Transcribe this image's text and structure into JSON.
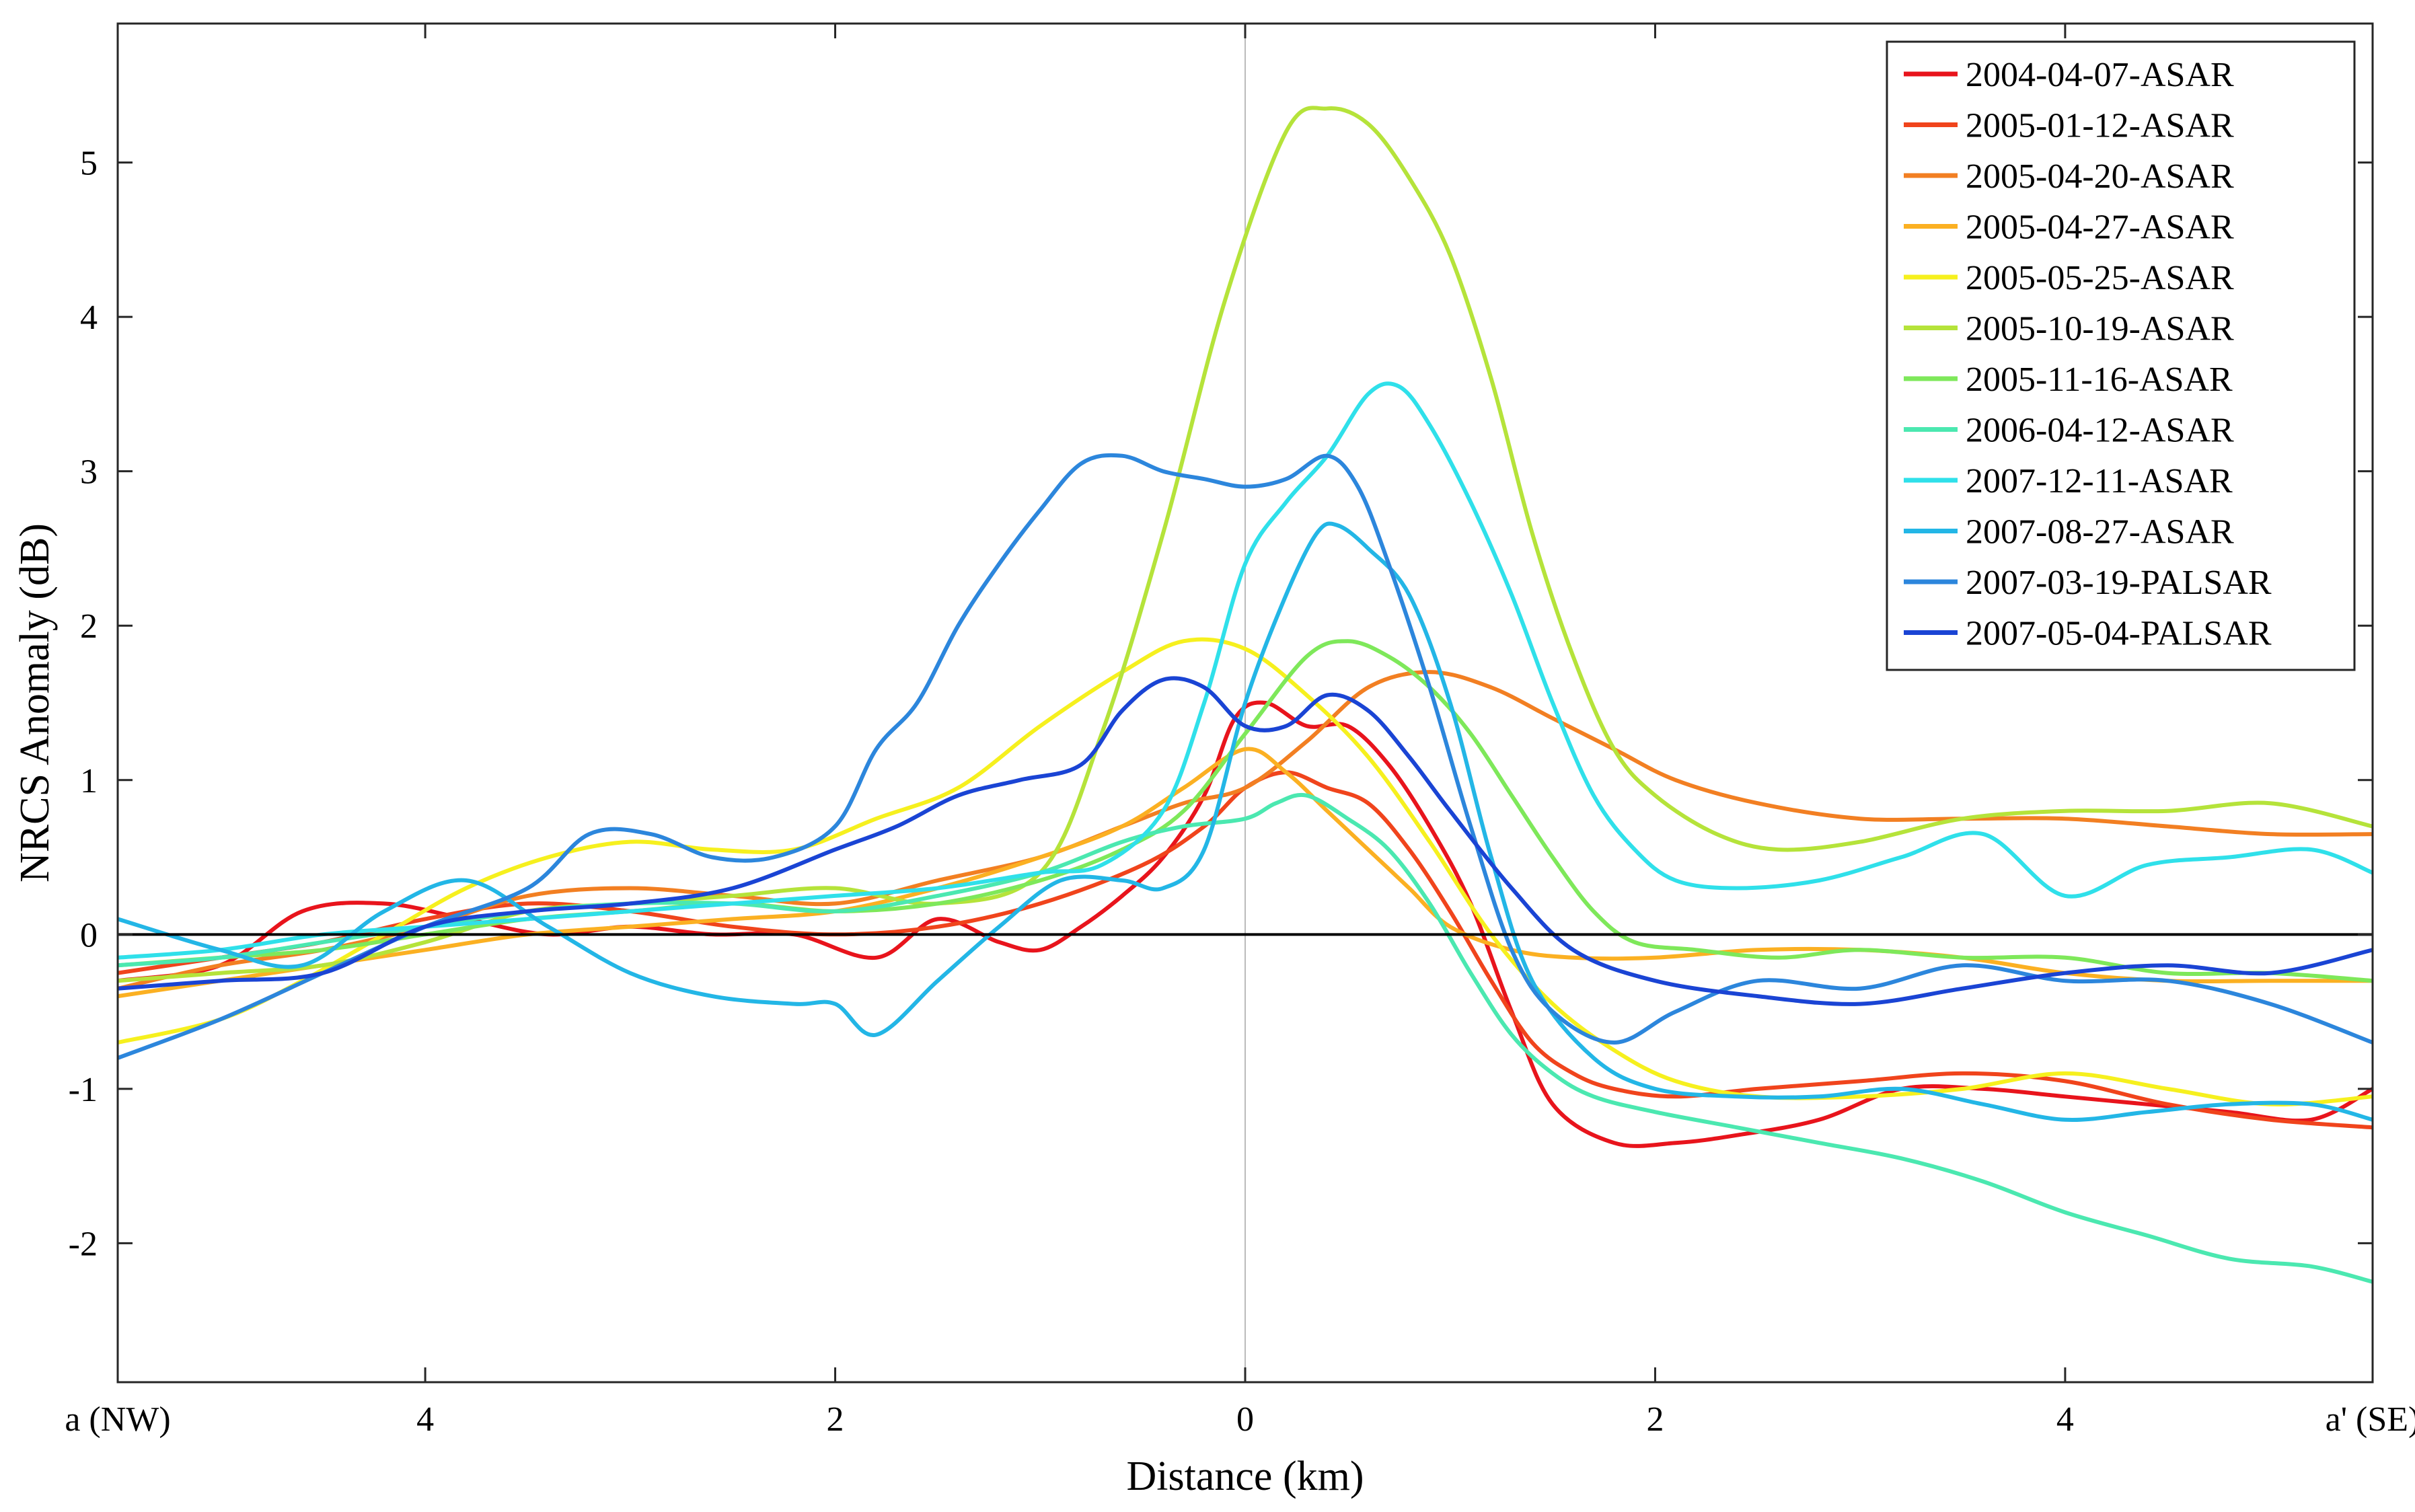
{
  "chart_data": {
    "type": "line",
    "title": "",
    "xlabel": "Distance (km)",
    "ylabel": "NRCS Anomaly (dB)",
    "xlim": [
      -5.5,
      5.5
    ],
    "ylim": [
      -2.9,
      5.9
    ],
    "grid": false,
    "legend_position": "top-right",
    "x_ticks": [
      {
        "value": -5.5,
        "label": "a (NW)"
      },
      {
        "value": -4,
        "label": "4"
      },
      {
        "value": -2,
        "label": "2"
      },
      {
        "value": 0,
        "label": "0"
      },
      {
        "value": 2,
        "label": "2"
      },
      {
        "value": 4,
        "label": "4"
      },
      {
        "value": 5.5,
        "label": "a' (SE)"
      }
    ],
    "y_ticks": [
      {
        "value": 5,
        "label": "5"
      },
      {
        "value": 4,
        "label": "4"
      },
      {
        "value": 3,
        "label": "3"
      },
      {
        "value": 2,
        "label": "2"
      },
      {
        "value": 1,
        "label": "1"
      },
      {
        "value": 0,
        "label": "0"
      },
      {
        "value": -1,
        "label": "-1"
      },
      {
        "value": -2,
        "label": "-2"
      }
    ],
    "reference_lines": [
      {
        "axis": "y",
        "value": 0,
        "color": "#000000"
      },
      {
        "axis": "x",
        "value": 0,
        "color": "#bbbbbb"
      }
    ],
    "series": [
      {
        "name": "2004-04-07-ASAR",
        "color": "#e8141c",
        "x": [
          -5.5,
          -5,
          -4.6,
          -4.2,
          -3.8,
          -3.4,
          -3,
          -2.6,
          -2.2,
          -1.8,
          -1.5,
          -1.2,
          -1,
          -0.8,
          -0.6,
          -0.4,
          -0.2,
          -0.05,
          0.1,
          0.3,
          0.5,
          0.7,
          0.9,
          1.1,
          1.3,
          1.5,
          1.8,
          2.1,
          2.4,
          2.8,
          3.2,
          3.6,
          4,
          4.4,
          4.8,
          5.2,
          5.5
        ],
        "y": [
          -0.3,
          -0.2,
          0.15,
          0.2,
          0.1,
          0,
          0.05,
          0,
          0,
          -0.15,
          0.1,
          -0.05,
          -0.1,
          0.05,
          0.25,
          0.5,
          0.9,
          1.4,
          1.5,
          1.35,
          1.35,
          1.1,
          0.7,
          0.2,
          -0.5,
          -1.1,
          -1.35,
          -1.35,
          -1.3,
          -1.2,
          -1,
          -1,
          -1.05,
          -1.1,
          -1.15,
          -1.2,
          -1
        ]
      },
      {
        "name": "2005-01-12-ASAR",
        "color": "#f0441c",
        "x": [
          -5.5,
          -5,
          -4.5,
          -4,
          -3.5,
          -3,
          -2.5,
          -2,
          -1.5,
          -1,
          -0.5,
          -0.2,
          0,
          0.2,
          0.4,
          0.6,
          0.8,
          1,
          1.2,
          1.4,
          1.6,
          1.8,
          2.1,
          2.5,
          3,
          3.5,
          4,
          4.5,
          5,
          5.5
        ],
        "y": [
          -0.25,
          -0.15,
          -0.05,
          0.1,
          0.2,
          0.15,
          0.05,
          0,
          0.05,
          0.2,
          0.45,
          0.7,
          0.95,
          1.05,
          0.95,
          0.85,
          0.55,
          0.15,
          -0.3,
          -0.7,
          -0.9,
          -1,
          -1.05,
          -1,
          -0.95,
          -0.9,
          -0.95,
          -1.1,
          -1.2,
          -1.25
        ]
      },
      {
        "name": "2005-04-20-ASAR",
        "color": "#f27f22",
        "x": [
          -5.5,
          -5,
          -4.5,
          -4,
          -3.5,
          -3,
          -2.5,
          -2,
          -1.5,
          -1,
          -0.6,
          -0.3,
          0,
          0.3,
          0.6,
          0.9,
          1.2,
          1.5,
          1.8,
          2.1,
          2.5,
          3,
          3.5,
          4,
          4.5,
          5,
          5.5
        ],
        "y": [
          -0.35,
          -0.2,
          -0.1,
          0.05,
          0.25,
          0.3,
          0.25,
          0.2,
          0.35,
          0.5,
          0.7,
          0.85,
          0.95,
          1.25,
          1.6,
          1.7,
          1.6,
          1.4,
          1.2,
          1,
          0.85,
          0.75,
          0.75,
          0.75,
          0.7,
          0.65,
          0.65
        ]
      },
      {
        "name": "2005-04-27-ASAR",
        "color": "#fbb022",
        "x": [
          -5.5,
          -5,
          -4.5,
          -4,
          -3.5,
          -3,
          -2.5,
          -2,
          -1.5,
          -1,
          -0.6,
          -0.3,
          0,
          0.2,
          0.4,
          0.6,
          0.8,
          1,
          1.3,
          1.6,
          2,
          2.5,
          3,
          3.5,
          4,
          4.5,
          5,
          5.5
        ],
        "y": [
          -0.4,
          -0.3,
          -0.2,
          -0.1,
          0,
          0.05,
          0.1,
          0.15,
          0.3,
          0.5,
          0.7,
          0.95,
          1.2,
          1.05,
          0.8,
          0.55,
          0.3,
          0.05,
          -0.1,
          -0.15,
          -0.15,
          -0.1,
          -0.1,
          -0.15,
          -0.25,
          -0.3,
          -0.3,
          -0.3
        ]
      },
      {
        "name": "2005-05-25-ASAR",
        "color": "#f6f01e",
        "x": [
          -5.5,
          -5,
          -4.6,
          -4.2,
          -3.8,
          -3.4,
          -3,
          -2.6,
          -2.2,
          -1.8,
          -1.4,
          -1,
          -0.6,
          -0.3,
          0,
          0.3,
          0.6,
          0.9,
          1.2,
          1.5,
          1.8,
          2.1,
          2.5,
          3,
          3.5,
          4,
          4.5,
          5,
          5.5
        ],
        "y": [
          -0.7,
          -0.55,
          -0.3,
          0,
          0.3,
          0.5,
          0.6,
          0.55,
          0.55,
          0.75,
          0.95,
          1.35,
          1.7,
          1.9,
          1.85,
          1.55,
          1.15,
          0.6,
          0,
          -0.45,
          -0.75,
          -0.95,
          -1.05,
          -1.05,
          -1,
          -0.9,
          -1,
          -1.1,
          -1.05
        ]
      },
      {
        "name": "2005-10-19-ASAR",
        "color": "#b5e33a",
        "x": [
          -5.5,
          -5,
          -4.5,
          -4,
          -3.5,
          -3,
          -2.5,
          -2,
          -1.5,
          -1,
          -0.7,
          -0.4,
          -0.1,
          0.2,
          0.4,
          0.6,
          0.8,
          1,
          1.2,
          1.4,
          1.6,
          1.8,
          2,
          2.3,
          2.6,
          3,
          3.5,
          4,
          4.5,
          5,
          5.5
        ],
        "y": [
          -0.3,
          -0.25,
          -0.2,
          -0.05,
          0.15,
          0.2,
          0.25,
          0.3,
          0.2,
          0.4,
          1.3,
          2.6,
          4.1,
          5.2,
          5.35,
          5.25,
          4.9,
          4.4,
          3.6,
          2.6,
          1.8,
          1.2,
          0.9,
          0.65,
          0.55,
          0.6,
          0.75,
          0.8,
          0.8,
          0.85,
          0.7
        ]
      },
      {
        "name": "2005-11-16-ASAR",
        "color": "#7ee85a",
        "x": [
          -5.5,
          -5,
          -4.5,
          -4,
          -3.5,
          -3,
          -2.5,
          -2,
          -1.5,
          -1,
          -0.6,
          -0.3,
          0,
          0.3,
          0.5,
          0.7,
          0.9,
          1.1,
          1.3,
          1.5,
          1.7,
          1.9,
          2.2,
          2.6,
          3,
          3.5,
          4,
          4.5,
          5,
          5.5
        ],
        "y": [
          -0.2,
          -0.15,
          -0.1,
          0,
          0.1,
          0.15,
          0.2,
          0.15,
          0.2,
          0.35,
          0.55,
          0.8,
          1.3,
          1.8,
          1.9,
          1.8,
          1.6,
          1.3,
          0.9,
          0.5,
          0.15,
          -0.05,
          -0.1,
          -0.15,
          -0.1,
          -0.15,
          -0.15,
          -0.25,
          -0.25,
          -0.3
        ]
      },
      {
        "name": "2006-04-12-ASAR",
        "color": "#4be8b0",
        "x": [
          -5.5,
          -5,
          -4.5,
          -4,
          -3.5,
          -3,
          -2.5,
          -2,
          -1.5,
          -1,
          -0.6,
          -0.3,
          0,
          0.15,
          0.3,
          0.5,
          0.7,
          0.9,
          1.1,
          1.3,
          1.5,
          1.7,
          2,
          2.4,
          2.8,
          3.2,
          3.6,
          4,
          4.4,
          4.8,
          5.2,
          5.5
        ],
        "y": [
          -0.2,
          -0.15,
          -0.05,
          0.05,
          0.15,
          0.2,
          0.2,
          0.15,
          0.25,
          0.4,
          0.6,
          0.7,
          0.75,
          0.85,
          0.9,
          0.75,
          0.55,
          0.2,
          -0.25,
          -0.65,
          -0.9,
          -1.05,
          -1.15,
          -1.25,
          -1.35,
          -1.45,
          -1.6,
          -1.8,
          -1.95,
          -2.1,
          -2.15,
          -2.25
        ]
      },
      {
        "name": "2007-12-11-ASAR",
        "color": "#2fe0ea",
        "x": [
          -5.5,
          -5,
          -4.5,
          -4,
          -3.5,
          -3,
          -2.5,
          -2,
          -1.5,
          -1,
          -0.7,
          -0.4,
          -0.2,
          0,
          0.2,
          0.4,
          0.6,
          0.75,
          0.9,
          1.1,
          1.3,
          1.5,
          1.7,
          1.9,
          2.1,
          2.4,
          2.8,
          3.2,
          3.6,
          4,
          4.4,
          4.8,
          5.2,
          5.5
        ],
        "y": [
          -0.15,
          -0.1,
          0,
          0.05,
          0.1,
          0.15,
          0.2,
          0.25,
          0.3,
          0.4,
          0.45,
          0.8,
          1.5,
          2.4,
          2.8,
          3.1,
          3.5,
          3.55,
          3.3,
          2.8,
          2.2,
          1.5,
          0.9,
          0.55,
          0.35,
          0.3,
          0.35,
          0.5,
          0.65,
          0.25,
          0.45,
          0.5,
          0.55,
          0.4
        ]
      },
      {
        "name": "2007-08-27-ASAR",
        "color": "#23b6e6",
        "x": [
          -5.5,
          -5,
          -4.6,
          -4.2,
          -3.8,
          -3.4,
          -3,
          -2.6,
          -2.2,
          -2,
          -1.8,
          -1.5,
          -1.2,
          -0.9,
          -0.6,
          -0.4,
          -0.2,
          0,
          0.2,
          0.35,
          0.45,
          0.6,
          0.8,
          1,
          1.2,
          1.4,
          1.7,
          2,
          2.4,
          2.8,
          3.2,
          3.6,
          4,
          4.4,
          4.8,
          5.2,
          5.5
        ],
        "y": [
          0.1,
          -0.1,
          -0.2,
          0.15,
          0.35,
          0.05,
          -0.25,
          -0.4,
          -0.45,
          -0.45,
          -0.65,
          -0.3,
          0.05,
          0.35,
          0.35,
          0.3,
          0.55,
          1.5,
          2.2,
          2.6,
          2.65,
          2.5,
          2.2,
          1.5,
          0.5,
          -0.3,
          -0.8,
          -1,
          -1.05,
          -1.05,
          -1,
          -1.1,
          -1.2,
          -1.15,
          -1.1,
          -1.1,
          -1.2
        ]
      },
      {
        "name": "2007-03-19-PALSAR",
        "color": "#2c86dc",
        "x": [
          -5.5,
          -5,
          -4.5,
          -4,
          -3.5,
          -3.2,
          -2.9,
          -2.6,
          -2.3,
          -2,
          -1.8,
          -1.6,
          -1.4,
          -1.2,
          -1,
          -0.8,
          -0.6,
          -0.4,
          -0.2,
          0,
          0.2,
          0.4,
          0.55,
          0.7,
          0.9,
          1.1,
          1.3,
          1.5,
          1.8,
          2.1,
          2.5,
          3,
          3.5,
          4,
          4.5,
          5,
          5.5
        ],
        "y": [
          -0.8,
          -0.55,
          -0.25,
          0.05,
          0.3,
          0.65,
          0.65,
          0.5,
          0.5,
          0.7,
          1.2,
          1.5,
          2,
          2.4,
          2.75,
          3.05,
          3.1,
          3,
          2.95,
          2.9,
          2.95,
          3.1,
          2.9,
          2.4,
          1.6,
          0.7,
          -0.1,
          -0.5,
          -0.7,
          -0.5,
          -0.3,
          -0.35,
          -0.2,
          -0.3,
          -0.3,
          -0.45,
          -0.7
        ]
      },
      {
        "name": "2007-05-04-PALSAR",
        "color": "#1a44d4",
        "x": [
          -5.5,
          -5,
          -4.5,
          -4,
          -3.5,
          -3,
          -2.5,
          -2,
          -1.7,
          -1.4,
          -1.1,
          -0.8,
          -0.6,
          -0.4,
          -0.2,
          0,
          0.2,
          0.4,
          0.6,
          0.8,
          1,
          1.3,
          1.6,
          2,
          2.5,
          3,
          3.5,
          4,
          4.5,
          5,
          5.5
        ],
        "y": [
          -0.35,
          -0.3,
          -0.25,
          0.05,
          0.15,
          0.2,
          0.3,
          0.55,
          0.7,
          0.9,
          1,
          1.1,
          1.45,
          1.65,
          1.6,
          1.35,
          1.35,
          1.55,
          1.45,
          1.15,
          0.8,
          0.3,
          -0.1,
          -0.3,
          -0.4,
          -0.45,
          -0.35,
          -0.25,
          -0.2,
          -0.25,
          -0.1
        ]
      }
    ]
  }
}
